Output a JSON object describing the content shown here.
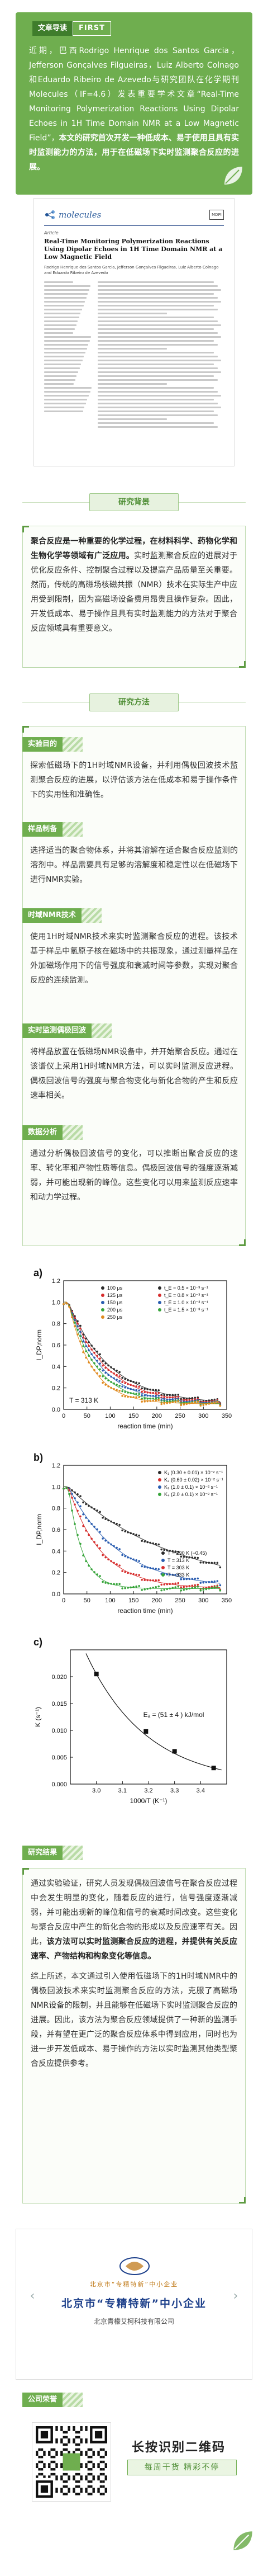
{
  "intro": {
    "tag_label": "文章导读",
    "tag_word": "FIRST",
    "text_plain": "近期，巴西Rodrigo Henrique dos Santos Garcia，Jefferson Gonçalves Filgueiras，Luiz Alberto Colnago和Eduardo Ribeiro de Azevedo与研究团队在化学期刊Molecules（IF=4.6）发表重要学术文章“Real-Time Monitoring Polymerization Reactions Using Dipolar Echoes in 1H Time Domain NMR at a Low Magnetic Field”，",
    "text_bold": "本文的研究首次开发一种低成本、易于使用且具有实时监测能力的方法，用于在低磁场下实时监测聚合反应的进展。"
  },
  "paper": {
    "journal": "molecules",
    "publisher": "MDPI",
    "kind": "Article",
    "title": "Real-Time Monitoring Polymerization Reactions Using Dipolar Echoes in 1H Time Domain NMR at a Low Magnetic Field",
    "authors": "Rodrigo Henrique dos Santos Garcia, Jefferson Gonçalves Filgueiras, Luiz Alberto Colnago and Eduardo Ribeiro de Azevedo"
  },
  "sections": {
    "background_title": "研究背景",
    "background_text_bold": "聚合反应是一种重要的化学过程，在材料科学、药物化学和生物化学等领域有广泛应用。",
    "background_text": "实时监测聚合反应的进展对于优化反应条件、控制聚合过程以及提高产品质量至关重要。然而，传统的高磁场核磁共振（NMR）技术在实际生产中应用受到限制，因为高磁场设备费用昂贵且操作复杂。因此，开发低成本、易于操作且具有实时监测能力的方法对于聚合反应领域具有重要意义。",
    "methods_title": "研究方法",
    "purpose_tag": "实验目的",
    "purpose_text": "探索低磁场下的1H时域NMR设备，并利用偶极回波技术监测聚合反应的进展，以评估该方法在低成本和易于操作条件下的实用性和准确性。",
    "system_tag": "样品制备",
    "system_text": "选择适当的聚合物体系，并将其溶解在适合聚合反应监测的溶剂中。样品需要具有足够的溶解度和稳定性以在低磁场下进行NMR实验。",
    "tech_tag": "时域NMR技术",
    "tech_text": "使用1H时域NMR技术来实时监测聚合反应的进程。该技术基于样品中氢原子核在磁场中的共振现象，通过测量样品在外加磁场作用下的信号强度和衰减时间等参数，实现对聚合反应的连续监测。",
    "echo_tag": "实时监测偶极回波",
    "echo_text": "将样品放置在低磁场NMR设备中，并开始聚合反应。通过在该谱仪上采用1H时域NMR方法，可以实时监测反应进程。偶极回波信号的强度与聚合物变化与新化合物的产生和反应速率相关。",
    "result_tag": "数据分析",
    "result_text": "通过分析偶极回波信号的变化，可以推断出聚合反应的速率、转化率和产物性质等信息。偶极回波信号的强度逐渐减弱，并可能出现新的峰位。这些变化可以用来监测反应速率和动力学过程。",
    "conclusion_title": "研究结果",
    "conclusion_tag": "END",
    "conclusion_p1": "通过实验验证，研究人员发现偶极回波信号在聚合反应过程中会发生明显的变化，随着反应的进行，信号强度逐渐减弱，并可能出现新的峰位和信号的衰减时间改变。",
    "conclusion_p1_extra": "这些变化与聚合反应中产生的新化合物的形成以及反应速率有关。因此，",
    "conclusion_p1_bold": "该方法可以实时监测聚合反应的进程，并提供有关反应速率、产物结构和构象变化等信息。",
    "conclusion_p2": "综上所述，本文通过引入使用低磁场下的1H时域NMR中的偶极回波技术来实时监测聚合反应的方法，克服了高磁场NMR设备的限制，并且能够在低磁场下实时监测聚合反应的进展。因此，该方法为聚合反应领域提供了一种新的监测手段，并有望在更广泛的聚合反应体系中得到应用，同时也为进一步开发低成本、易于操作的方法以实时监测其他类型聚合反应提供参考。"
  },
  "figure": {
    "panel_a": "a)",
    "panel_b": "b)",
    "panel_c": "c)",
    "ylabel_ab": "I_DP,norm",
    "xlabel_ab": "reaction time (min)",
    "ylabel_c": "K (s⁻¹)",
    "xlabel_c": "1000/T (K⁻¹)",
    "temp_a": "T = 313 K",
    "temp_b_list": [
      "T = 290 K (−0.45)",
      "T = 313 K",
      "T = 303 K",
      "T = 333 K"
    ],
    "ea_text": "Eₐ = (51 ± 4 ) kJ/mol",
    "legend_a": [
      {
        "label": "t_E = 0.5 × 10⁻³ s⁻¹",
        "color": "#2b2b2b"
      },
      {
        "label": "t_E = 0.8 × 10⁻³ s⁻¹",
        "color": "#d62d2d"
      },
      {
        "label": "t_E = 1.0 × 10⁻³ s⁻¹",
        "color": "#2a5db0"
      },
      {
        "label": "t_E = 1.5 × 10⁻³ s⁻¹",
        "color": "#36a43a"
      }
    ],
    "legend_a_left": [
      "100 μs",
      "125 μs",
      "150 μs",
      "200 μs",
      "250 μs"
    ],
    "legend_b": [
      {
        "label": "K₁ (0.30 ± 0.01) × 10⁻² s⁻¹",
        "color": "#2b2b2b"
      },
      {
        "label": "K₂ (0.60 ± 0.02) × 10⁻² s⁻¹",
        "color": "#d62d2d"
      },
      {
        "label": "K₃ (1.0 ± 0.1) × 10⁻² s⁻¹",
        "color": "#2a5db0"
      },
      {
        "label": "K₄ (2.0 ± 0.1) × 10⁻² s⁻¹",
        "color": "#36a43a"
      }
    ]
  },
  "chart_data": [
    {
      "type": "scatter",
      "title": "",
      "xlabel": "reaction time (min)",
      "ylabel": "I_DP,norm",
      "xlim": [
        0,
        350
      ],
      "ylim": [
        0.0,
        1.2
      ],
      "xticks": [
        0,
        50,
        100,
        150,
        200,
        250,
        300,
        350
      ],
      "yticks": [
        0.0,
        0.2,
        0.4,
        0.6,
        0.8,
        1.0,
        1.2
      ],
      "series": [
        {
          "name": "100 μs",
          "color": "#2b2b2b",
          "tau": 90,
          "floor": 0.05
        },
        {
          "name": "125 μs",
          "color": "#d62d2d",
          "tau": 80,
          "floor": 0.05
        },
        {
          "name": "150 μs",
          "color": "#2a5db0",
          "tau": 70,
          "floor": 0.05
        },
        {
          "name": "200 μs",
          "color": "#36a43a",
          "tau": 60,
          "floor": 0.05
        },
        {
          "name": "250 μs",
          "color": "#e08a1e",
          "tau": 50,
          "floor": 0.05
        }
      ]
    },
    {
      "type": "scatter",
      "title": "",
      "xlabel": "reaction time (min)",
      "ylabel": "I_DP,norm",
      "xlim": [
        0,
        350
      ],
      "ylim": [
        0.0,
        1.2
      ],
      "xticks": [
        0,
        50,
        100,
        150,
        200,
        250,
        300,
        350
      ],
      "yticks": [
        0.0,
        0.2,
        0.4,
        0.6,
        0.8,
        1.0,
        1.2
      ],
      "series": [
        {
          "name": "T = 290 K",
          "color": "#2b2b2b",
          "tau": 220,
          "floor": 0.05
        },
        {
          "name": "T = 303 K",
          "color": "#2a5db0",
          "tau": 110,
          "floor": 0.05
        },
        {
          "name": "T = 313 K",
          "color": "#d62d2d",
          "tau": 70,
          "floor": 0.05
        },
        {
          "name": "T = 333 K",
          "color": "#36a43a",
          "tau": 30,
          "floor": 0.05
        }
      ]
    },
    {
      "type": "scatter",
      "title": "",
      "xlabel": "1000/T (K⁻¹)",
      "ylabel": "K (s⁻¹)",
      "xlim": [
        2.9,
        3.5
      ],
      "ylim": [
        0.0,
        0.025
      ],
      "xticks": [
        3.0,
        3.1,
        3.2,
        3.3,
        3.4
      ],
      "yticks": [
        0.0,
        0.005,
        0.01,
        0.015,
        0.02
      ],
      "points": [
        [
          3.0,
          0.0205
        ],
        [
          3.19,
          0.0098
        ],
        [
          3.3,
          0.0061
        ],
        [
          3.45,
          0.003
        ]
      ],
      "fit": {
        "type": "exponential",
        "label": "Eₐ = (51 ± 4 ) kJ/mol"
      }
    }
  ],
  "footer": {
    "gz_sub": "北京市“专精特新”中小企业",
    "gz_big": "北京市“专精特新”中小企业",
    "company": "北京青檬艾柯科技有限公司",
    "public_tag": "公司荣誉",
    "qr_title": "长按识别二维码",
    "qr_sub": "每周干货 精彩不停"
  },
  "colors": {
    "brand_green": "#6fae4f",
    "dark_green": "#3f7d2c",
    "light_green": "#eaf5e2"
  }
}
